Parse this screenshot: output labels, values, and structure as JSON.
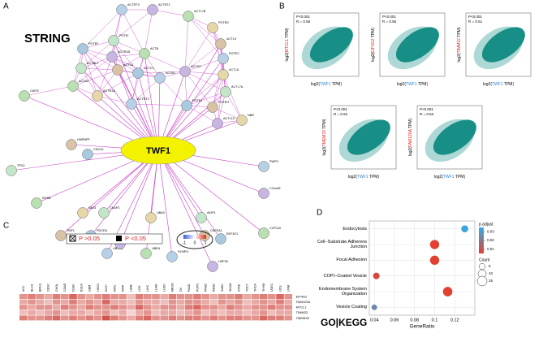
{
  "panel_labels": [
    "A",
    "B",
    "C",
    "D"
  ],
  "network": {
    "title": "STRING",
    "center": "TWF1",
    "nodes": [
      "ACTRT3",
      "ACTRT1",
      "ACTL7B",
      "POTEE",
      "POTEI",
      "ACTL9",
      "POTEF",
      "POTEC",
      "ACTR1B",
      "ACTB",
      "ACTL8",
      "ACTBL2",
      "ACTG1",
      "ACTC1",
      "ACTA1",
      "ACTG2",
      "ACTA2",
      "ACTR1A",
      "ACTL7A",
      "POTEH",
      "POTEJ",
      "ACTRT2",
      "ACTL10",
      "CAPG",
      "NBR",
      "TPX2",
      "HNRNPF",
      "CDC42",
      "PWP2",
      "C12orf5",
      "KIF5B",
      "VAV3",
      "CKAP2",
      "TMF1",
      "PDCD6",
      "UBXN1",
      "UBR5",
      "UBR4",
      "UBA3",
      "AKIP1",
      "CAPZA1",
      "EEF1E1",
      "SYNPO",
      "USP30",
      "CCP110"
    ]
  },
  "scatter_panels": [
    {
      "p": "P<0.001",
      "r": "R = 0.55",
      "ylabel": [
        "log2(",
        "MTCL1",
        " TPM)"
      ],
      "xlabel": [
        "log2(",
        "TWF1",
        " TPM)"
      ]
    },
    {
      "p": "P<0.001",
      "r": "R = 0.56",
      "ylabel": [
        "log2(",
        "EIF4G2",
        " TPM)"
      ],
      "xlabel": [
        "log2(",
        "TWF1",
        " TPM)"
      ]
    },
    {
      "p": "P<0.001",
      "r": "R = 0.51",
      "ylabel": [
        "log2(",
        "TIMM22",
        " TPM)"
      ],
      "xlabel": [
        "log2(",
        "TWF1",
        " TPM)"
      ]
    },
    {
      "p": "P<0.001",
      "r": "R = 0.52",
      "ylabel": [
        "log2(",
        "TMEM33",
        " TPM)"
      ],
      "xlabel": [
        "log2(",
        "TWF1",
        " TPM)"
      ]
    },
    {
      "p": "P<0.001",
      "r": "R = 0.53",
      "ylabel": [
        "log2(",
        "FAM120A",
        " TPM)"
      ],
      "xlabel": [
        "log2(",
        "TWF1",
        " TPM)"
      ]
    }
  ],
  "heatmap": {
    "legend_ns": "P >0.05",
    "legend_s": "P <0.05",
    "scale_labels": [
      "-1",
      "0",
      "1"
    ],
    "rows": [
      "EIF4G2",
      "FAM120A",
      "MTCL1",
      "TIMM22",
      "TMEM33"
    ],
    "columns": [
      "ACC",
      "BLCA",
      "BRCA",
      "CESC",
      "CHOL",
      "COAD",
      "DLBC",
      "ESCA",
      "GBM",
      "HNSC",
      "KICH",
      "KIRC",
      "KIRP",
      "LAML",
      "LGG",
      "LIHC",
      "LUAD",
      "LUSC",
      "MESO",
      "OV",
      "PAAD",
      "PCPG",
      "PRAD",
      "READ",
      "SARC",
      "SKCM",
      "STAD",
      "TGCT",
      "THCA",
      "THYM",
      "UCEC",
      "UCS",
      "UVM"
    ],
    "values": [
      [
        0.5,
        0.6,
        0.5,
        0.4,
        0.6,
        0.5,
        0.7,
        0.5,
        0.4,
        0.5,
        0.6,
        0.5,
        0.5,
        0.3,
        0.6,
        0.5,
        0.5,
        0.4,
        0.6,
        0.5,
        0.5,
        0.6,
        0.5,
        0.4,
        0.5,
        0.5,
        0.6,
        0.4,
        0.5,
        0.6,
        0.5,
        0.7,
        0.5
      ],
      [
        0.4,
        0.5,
        0.4,
        0.3,
        0.5,
        0.4,
        0.6,
        0.4,
        0.5,
        0.4,
        0.7,
        0.4,
        0.4,
        0.3,
        0.5,
        0.4,
        0.4,
        0.3,
        0.5,
        0.4,
        0.5,
        0.5,
        0.4,
        0.3,
        0.5,
        0.4,
        0.5,
        0.3,
        0.4,
        0.5,
        0.4,
        0.6,
        0.4
      ],
      [
        0.5,
        0.4,
        0.5,
        0.5,
        0.4,
        0.6,
        0.5,
        0.4,
        0.6,
        0.5,
        0.5,
        0.6,
        0.5,
        0.4,
        0.7,
        0.5,
        0.4,
        0.5,
        0.5,
        0.4,
        0.6,
        0.7,
        0.5,
        0.5,
        0.4,
        0.6,
        0.5,
        0.4,
        0.5,
        0.5,
        0.6,
        0.5,
        0.5
      ],
      [
        0.3,
        0.4,
        0.3,
        0.4,
        0.5,
        0.3,
        0.4,
        0.4,
        0.3,
        0.4,
        0.5,
        0.3,
        0.4,
        0.2,
        0.4,
        0.5,
        0.3,
        0.4,
        0.4,
        0.3,
        0.4,
        0.5,
        0.3,
        0.4,
        0.3,
        0.4,
        0.4,
        0.3,
        0.4,
        0.5,
        0.3,
        0.4,
        0.4
      ],
      [
        0.6,
        0.5,
        0.5,
        0.6,
        0.7,
        0.5,
        0.6,
        0.5,
        0.6,
        0.5,
        0.8,
        0.6,
        0.5,
        0.4,
        0.6,
        0.7,
        0.5,
        0.5,
        0.6,
        0.5,
        0.6,
        0.6,
        0.5,
        0.6,
        0.5,
        0.6,
        0.6,
        0.5,
        0.5,
        0.7,
        0.6,
        0.6,
        0.5
      ]
    ]
  },
  "chart_data": {
    "type": "scatter",
    "title": "GO|KEGG",
    "xlabel": "GeneRatio",
    "categories": [
      "Endocytosis",
      "Cell−Substrate Adherens Junction",
      "Focal Adhesion",
      "COPI−Coated Vesicle",
      "Endomembrane System Organization",
      "Vesicle Coating"
    ],
    "x": [
      0.13,
      0.1,
      0.1,
      0.042,
      0.113,
      0.04
    ],
    "p_adjust": [
      0.033,
      0.005,
      0.005,
      0.007,
      0.005,
      0.025
    ],
    "count": [
      7,
      13,
      13,
      6,
      14,
      4
    ],
    "xlim": [
      0.035,
      0.14
    ],
    "xticks": [
      0.04,
      0.06,
      0.08,
      0.1,
      0.12
    ],
    "color_title": "p.adjust",
    "color_lim": [
      0.005,
      0.035
    ],
    "color_ticks": [
      0.03,
      0.02,
      0.01
    ],
    "size_title": "Count",
    "size_ticks": [
      5,
      10,
      15
    ]
  }
}
